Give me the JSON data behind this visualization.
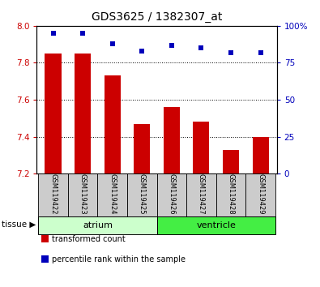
{
  "title": "GDS3625 / 1382307_at",
  "samples": [
    "GSM119422",
    "GSM119423",
    "GSM119424",
    "GSM119425",
    "GSM119426",
    "GSM119427",
    "GSM119428",
    "GSM119429"
  ],
  "transformed_count": [
    7.85,
    7.85,
    7.73,
    7.47,
    7.56,
    7.48,
    7.33,
    7.4
  ],
  "percentile_rank": [
    95,
    95,
    88,
    83,
    87,
    85,
    82,
    82
  ],
  "ylim_left": [
    7.2,
    8.0
  ],
  "ylim_right": [
    0,
    100
  ],
  "yticks_left": [
    7.2,
    7.4,
    7.6,
    7.8,
    8.0
  ],
  "yticks_right": [
    0,
    25,
    50,
    75,
    100
  ],
  "ytick_labels_right": [
    "0",
    "25",
    "50",
    "75",
    "100%"
  ],
  "bar_color": "#cc0000",
  "dot_color": "#0000bb",
  "grid_color": "#000000",
  "tissue_groups": [
    {
      "label": "atrium",
      "start": 0,
      "end": 3,
      "color": "#ccffcc"
    },
    {
      "label": "ventricle",
      "start": 4,
      "end": 7,
      "color": "#44ee44"
    }
  ],
  "tissue_label": "tissue",
  "legend_items": [
    {
      "label": "transformed count",
      "color": "#cc0000"
    },
    {
      "label": "percentile rank within the sample",
      "color": "#0000bb"
    }
  ],
  "bar_width": 0.55,
  "bar_bottom": 7.2,
  "bg_color": "#ffffff",
  "label_box_color": "#cccccc"
}
